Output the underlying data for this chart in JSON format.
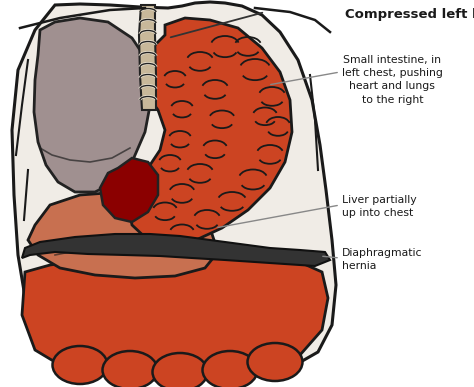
{
  "bg_color": "#ffffff",
  "body_outline_color": "#1a1a1a",
  "body_fill_color": "#f0ece6",
  "lung_fill_color": "#a09090",
  "lung_outline_color": "#222222",
  "heart_fill_color": "#8b0000",
  "intestine_fill_color": "#cc4422",
  "intestine_outline_color": "#1a1a1a",
  "intestine_fold_color": "#1a1a1a",
  "liver_fill_color": "#c87050",
  "liver_outline_color": "#1a1a1a",
  "diaphragm_color": "#222222",
  "trachea_fill": "#c8b89a",
  "trachea_ring_color": "#f0e8d8",
  "label_color": "#1a1a1a",
  "arrow_color": "#888888",
  "title_text": "Compressed left lung",
  "label1_text": "Small intestine, in\nleft chest, pushing\nheart and lungs\nto the right",
  "label2_text": "Liver partially\nup into chest",
  "label3_text": "Diaphragmatic\nhernia",
  "figsize": [
    4.74,
    3.87
  ],
  "dpi": 100
}
